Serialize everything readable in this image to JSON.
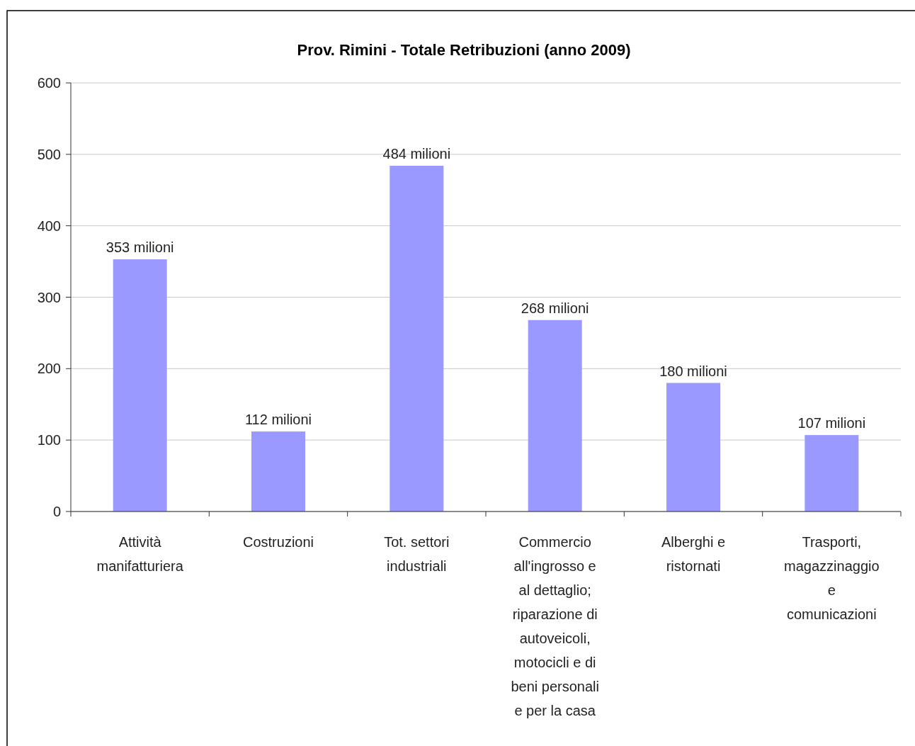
{
  "chart_data": {
    "type": "bar",
    "title": "Prov. Rimini - Totale Retribuzioni (anno 2009)",
    "categories": [
      "Attività manifatturiera",
      "Costruzioni",
      "Tot. settori industriali",
      "Commercio all'ingrosso e al dettaglio; riparazione di autoveicoli, motocicli e di beni personali e per la casa",
      "Alberghi e ristornati",
      "Trasporti, magazzinaggio e comunicazioni"
    ],
    "values": [
      353,
      112,
      484,
      268,
      180,
      107
    ],
    "value_labels": [
      "353 milioni",
      "112 milioni",
      "484 milioni",
      "268 milioni",
      "180 milioni",
      "107 milioni"
    ],
    "color": "#9999ff",
    "ylim": [
      0,
      600
    ],
    "yticks": [
      0,
      100,
      200,
      300,
      400,
      500,
      600
    ],
    "grid": "y"
  }
}
